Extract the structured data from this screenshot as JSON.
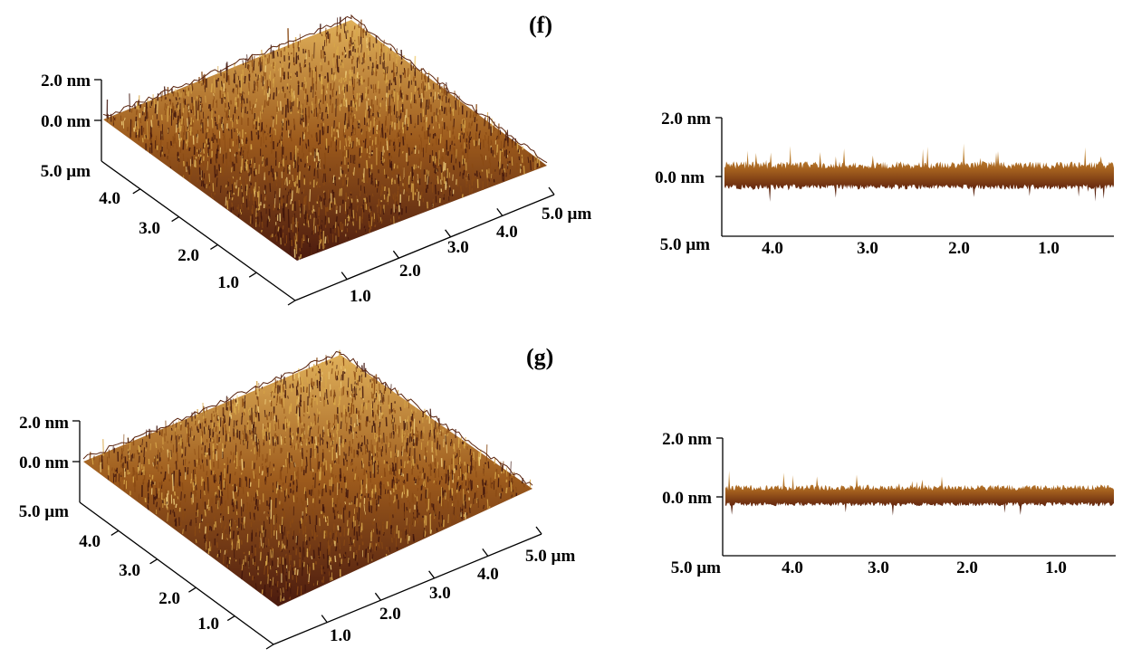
{
  "panels": [
    {
      "label": "(f)",
      "surface_colors": {
        "dark": "#3e140c",
        "mid": "#8a4a14",
        "light": "#d8a84a",
        "highlight": "#f0cf7c"
      },
      "surface3d": {
        "z_ticks": [
          "2.0 nm",
          "0.0 nm"
        ],
        "y_start_label": "5.0 µm",
        "y_ticks": [
          "4.0",
          "3.0",
          "2.0",
          "1.0"
        ],
        "x_ticks": [
          "1.0",
          "2.0",
          "3.0",
          "4.0",
          "5.0 µm"
        ]
      },
      "profile": {
        "y_ticks": [
          "2.0 nm",
          "0.0 nm"
        ],
        "x_start_label": "5.0 µm",
        "x_ticks": [
          "4.0",
          "3.0",
          "2.0",
          "1.0"
        ]
      }
    },
    {
      "label": "(g)",
      "surface_colors": {
        "dark": "#3e140c",
        "mid": "#8a4a14",
        "light": "#d8a84a",
        "highlight": "#f0cf7c"
      },
      "surface3d": {
        "z_ticks": [
          "2.0 nm",
          "0.0 nm"
        ],
        "y_start_label": "5.0 µm",
        "y_ticks": [
          "4.0",
          "3.0",
          "2.0",
          "1.0"
        ],
        "x_ticks": [
          "1.0",
          "2.0",
          "3.0",
          "4.0",
          "5.0 µm"
        ]
      },
      "profile": {
        "y_ticks": [
          "2.0 nm",
          "0.0 nm"
        ],
        "x_start_label": "5.0 µm",
        "x_ticks": [
          "4.0",
          "3.0",
          "2.0",
          "1.0"
        ]
      }
    }
  ]
}
